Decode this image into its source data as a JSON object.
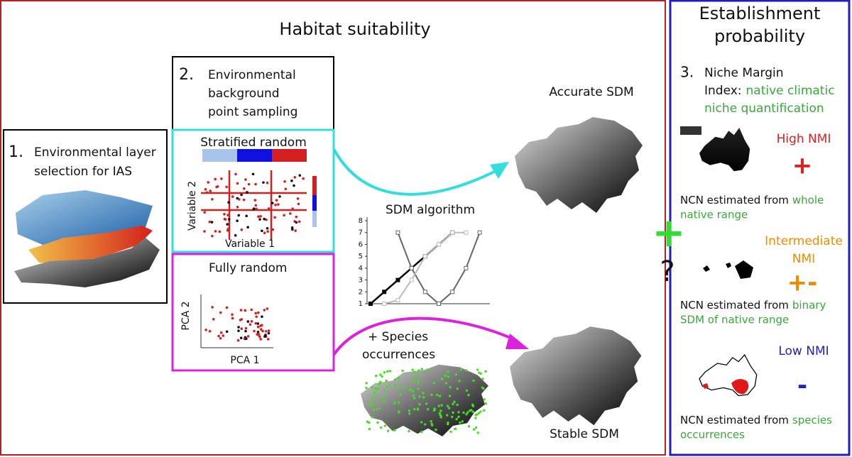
{
  "habitat": {
    "title": "Habitat suitability"
  },
  "establishment": {
    "title_lines": [
      "Establishment",
      "probability"
    ]
  },
  "step1": {
    "number": "1.",
    "label_lines": [
      "Environmental layer",
      "selection for IAS"
    ]
  },
  "step2": {
    "number": "2.",
    "label_lines": [
      "Environmental",
      "background",
      "point sampling"
    ],
    "stratified": {
      "title": "Stratified random",
      "y_axis": "Variable 2",
      "x_axis": "Variable 1"
    },
    "fully_random": {
      "title": "Fully random",
      "y_axis": "PCA 2",
      "x_axis": "PCA 1"
    }
  },
  "sdm_algorithm": {
    "title": "SDM algorithm",
    "yticks": [
      1,
      2,
      3,
      4,
      5,
      6,
      7,
      8
    ],
    "series": [
      {
        "color": "#000000",
        "values": [
          1,
          2,
          3,
          4,
          5,
          6,
          7,
          null,
          null
        ]
      },
      {
        "color": "#666666",
        "values": [
          null,
          null,
          7,
          4,
          2,
          1,
          2,
          4,
          7
        ]
      },
      {
        "color": "#bbbbbb",
        "values": [
          null,
          1,
          1.3,
          3,
          5,
          6,
          7,
          7,
          null
        ]
      }
    ]
  },
  "occurrences": {
    "label_lines": [
      "+ Species",
      "occurrences"
    ]
  },
  "outputs": {
    "accurate": "Accurate SDM",
    "stable": "Stable SDM"
  },
  "joiners": {
    "plus": "+",
    "question": "?"
  },
  "step3": {
    "number": "3.",
    "label_lines": [
      "Niche Margin",
      "Index:"
    ],
    "highlight_lines": [
      "native climatic",
      "niche quantification"
    ]
  },
  "nmi_rows": [
    {
      "level_lines": [
        "High NMI"
      ],
      "sign": "+",
      "caption": "NCN estimated from",
      "source_lines": [
        "whole",
        "native range"
      ]
    },
    {
      "level_lines": [
        "Intermediate",
        "NMI"
      ],
      "sign": "+-",
      "caption": "NCN estimated from",
      "source_lines": [
        "binary",
        "SDM of native range"
      ]
    },
    {
      "level_lines": [
        "Low NMI"
      ],
      "sign": "-",
      "caption": "NCN estimated from",
      "source_lines": [
        "species",
        "occurrences"
      ]
    }
  ]
}
